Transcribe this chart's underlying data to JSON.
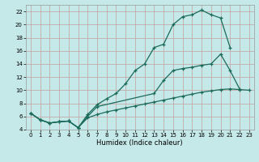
{
  "xlabel": "Humidex (Indice chaleur)",
  "bg_color": "#c5e8e8",
  "grid_color": "#c4a0a0",
  "line_color": "#1a6b5a",
  "xlim": [
    -0.5,
    23.5
  ],
  "ylim": [
    4,
    23
  ],
  "xticks": [
    0,
    1,
    2,
    3,
    4,
    5,
    6,
    7,
    8,
    9,
    10,
    11,
    12,
    13,
    14,
    15,
    16,
    17,
    18,
    19,
    20,
    21,
    22,
    23
  ],
  "yticks": [
    4,
    6,
    8,
    10,
    12,
    14,
    16,
    18,
    20,
    22
  ],
  "c1x": [
    0,
    1,
    2,
    3,
    4,
    5,
    6,
    7,
    8,
    9,
    10,
    11,
    12,
    13,
    14,
    15,
    16,
    17,
    18,
    19,
    20,
    21
  ],
  "c1y": [
    6.5,
    5.5,
    5.0,
    5.2,
    5.3,
    4.3,
    6.3,
    7.8,
    8.7,
    9.5,
    11.0,
    13.0,
    14.0,
    16.5,
    17.0,
    20.0,
    21.2,
    21.5,
    22.2,
    21.5,
    21.0,
    16.5
  ],
  "c2x": [
    0,
    1,
    2,
    3,
    4,
    5,
    6,
    7,
    13,
    14,
    15,
    16,
    17,
    18,
    19,
    20,
    21,
    22
  ],
  "c2y": [
    6.5,
    5.5,
    5.0,
    5.2,
    5.3,
    4.3,
    6.0,
    7.5,
    9.5,
    11.5,
    13.0,
    13.3,
    13.5,
    13.8,
    14.0,
    15.5,
    13.0,
    10.2
  ],
  "c3x": [
    0,
    1,
    2,
    3,
    4,
    5,
    6,
    7,
    8,
    9,
    10,
    11,
    12,
    13,
    14,
    15,
    16,
    17,
    18,
    19,
    20,
    21,
    22,
    23
  ],
  "c3y": [
    6.5,
    5.5,
    5.0,
    5.2,
    5.3,
    4.3,
    5.8,
    6.3,
    6.7,
    7.0,
    7.3,
    7.6,
    7.9,
    8.2,
    8.5,
    8.8,
    9.1,
    9.4,
    9.7,
    9.9,
    10.1,
    10.2,
    10.1,
    10.0
  ]
}
